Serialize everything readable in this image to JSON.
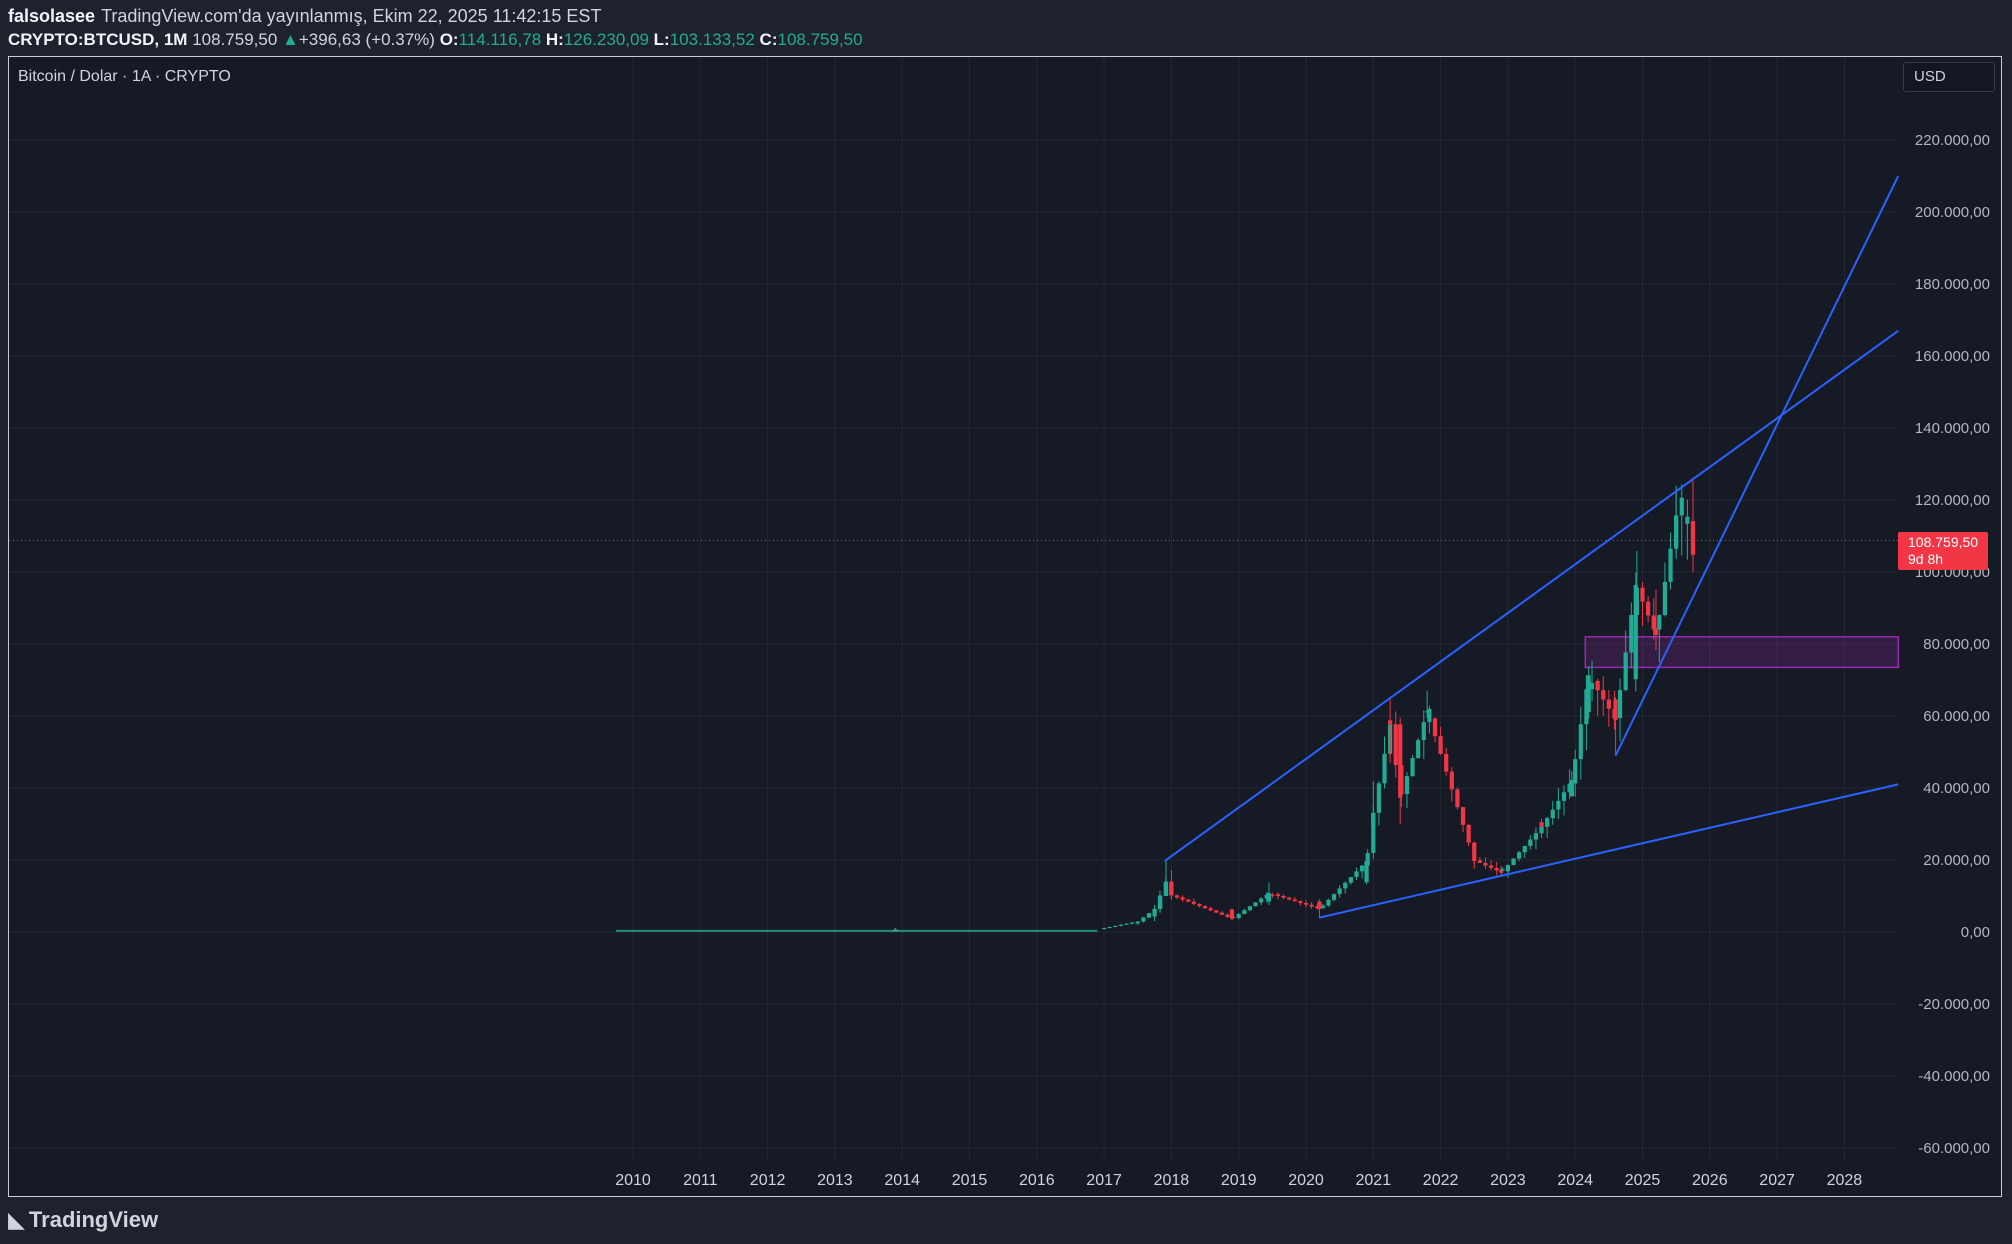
{
  "header": {
    "author": "falsolasee",
    "published": "TradingView.com'da yayınlanmış, Ekim 22, 2025 11:42:15 EST",
    "symbol": "CRYPTO:BTCUSD, 1M",
    "last": "108.759,50",
    "change_icon": "triangle-up-icon",
    "change": "+396,63 (+0.37%)",
    "open_label": "O:",
    "open": "114.116,78",
    "high_label": "H:",
    "high": "126.230,09",
    "low_label": "L:",
    "low": "103.133,52",
    "close_label": "C:",
    "close": "108.759,50"
  },
  "legend_title": "Bitcoin / Dolar · 1A · CRYPTO",
  "currency_button": "USD",
  "price_tag": {
    "price": "108.759,50",
    "countdown": "9d 8h"
  },
  "brand": "TradingView",
  "colors": {
    "up": "#22ab94",
    "down": "#f23645",
    "trendline": "#2962ff",
    "zone_border": "#9c27b0",
    "zone_fill": "rgba(156,39,176,0.22)",
    "bg": "#161a25",
    "grid": "#232733"
  },
  "chart_data": {
    "type": "candlestick",
    "title": "Bitcoin / Dolar · 1A · CRYPTO",
    "symbol": "CRYPTO:BTCUSD",
    "interval": "1M",
    "y_axis": {
      "min": -60000,
      "max": 220000,
      "step": 20000,
      "tick_labels": [
        "220.000,00",
        "200.000,00",
        "180.000,00",
        "160.000,00",
        "140.000,00",
        "120.000,00",
        "100.000,00",
        "80.000,00",
        "60.000,00",
        "40.000,00",
        "20.000,00",
        "0,00",
        "-20.000,00",
        "-40.000,00",
        "-60.000,00"
      ]
    },
    "x_axis": {
      "tick_labels": [
        "2010",
        "2011",
        "2012",
        "2013",
        "2014",
        "2015",
        "2016",
        "2017",
        "2018",
        "2019",
        "2020",
        "2021",
        "2022",
        "2023",
        "2024",
        "2025",
        "2026",
        "2027",
        "2028"
      ]
    },
    "grid": true,
    "last_price": 108759.5,
    "candles_yearly_approx": [
      {
        "t": 2013.9,
        "o": 200,
        "h": 1150,
        "l": 400,
        "c": 750
      },
      {
        "t": 2017.0,
        "o": 1000,
        "h": 1200,
        "l": 750,
        "c": 1100
      },
      {
        "t": 2017.5,
        "o": 2400,
        "h": 3000,
        "l": 1900,
        "c": 2900
      },
      {
        "t": 2017.75,
        "o": 4300,
        "h": 7500,
        "l": 3000,
        "c": 6400
      },
      {
        "t": 2017.83,
        "o": 6400,
        "h": 11500,
        "l": 5500,
        "c": 10000
      },
      {
        "t": 2017.92,
        "o": 10000,
        "h": 19700,
        "l": 10000,
        "c": 14000
      },
      {
        "t": 2018.0,
        "o": 14000,
        "h": 17200,
        "l": 9000,
        "c": 10200
      },
      {
        "t": 2018.9,
        "o": 6300,
        "h": 6500,
        "l": 3200,
        "c": 3700
      },
      {
        "t": 2019.45,
        "o": 8500,
        "h": 13800,
        "l": 7500,
        "c": 10800
      },
      {
        "t": 2020.2,
        "o": 8500,
        "h": 9100,
        "l": 3800,
        "c": 6400
      },
      {
        "t": 2020.9,
        "o": 13800,
        "h": 19900,
        "l": 13200,
        "c": 19700
      },
      {
        "t": 2021.0,
        "o": 29000,
        "h": 41900,
        "l": 28000,
        "c": 33100
      },
      {
        "t": 2021.25,
        "o": 58800,
        "h": 64800,
        "l": 47000,
        "c": 57700
      },
      {
        "t": 2021.4,
        "o": 57700,
        "h": 59500,
        "l": 30000,
        "c": 37300
      },
      {
        "t": 2021.8,
        "o": 61300,
        "h": 67000,
        "l": 59500,
        "c": 61300
      },
      {
        "t": 2022.5,
        "o": 20000,
        "h": 22500,
        "l": 17600,
        "c": 19900
      },
      {
        "t": 2022.9,
        "o": 17100,
        "h": 18400,
        "l": 15500,
        "c": 16500
      },
      {
        "t": 2023.5,
        "o": 30500,
        "h": 31400,
        "l": 28500,
        "c": 29200
      },
      {
        "t": 2023.95,
        "o": 37700,
        "h": 44700,
        "l": 37600,
        "c": 42200
      },
      {
        "t": 2024.2,
        "o": 61100,
        "h": 73800,
        "l": 59300,
        "c": 71300
      },
      {
        "t": 2024.6,
        "o": 64600,
        "h": 65200,
        "l": 49000,
        "c": 58900
      },
      {
        "t": 2024.9,
        "o": 70200,
        "h": 99800,
        "l": 66800,
        "c": 96400
      },
      {
        "t": 2025.2,
        "o": 84400,
        "h": 95100,
        "l": 78200,
        "c": 82500
      },
      {
        "t": 2025.5,
        "o": 107100,
        "h": 123200,
        "l": 105300,
        "c": 115700
      },
      {
        "t": 2025.75,
        "o": 114116.78,
        "h": 126230.09,
        "l": 103133.52,
        "c": 108759.5
      }
    ],
    "drawings": [
      {
        "kind": "trendline",
        "from": {
          "t": 2017.9,
          "y": 19700
        },
        "to": {
          "t": 2028.8,
          "y": 167000
        }
      },
      {
        "kind": "trendline",
        "from": {
          "t": 2020.2,
          "y": 4000
        },
        "to": {
          "t": 2028.8,
          "y": 41000
        }
      },
      {
        "kind": "trendline",
        "from": {
          "t": 2024.6,
          "y": 49000
        },
        "to": {
          "t": 2028.8,
          "y": 210000
        }
      },
      {
        "kind": "rectangle",
        "from_t": 2024.15,
        "to_t": 2028.8,
        "y_top": 82000,
        "y_bottom": 73500
      }
    ]
  }
}
